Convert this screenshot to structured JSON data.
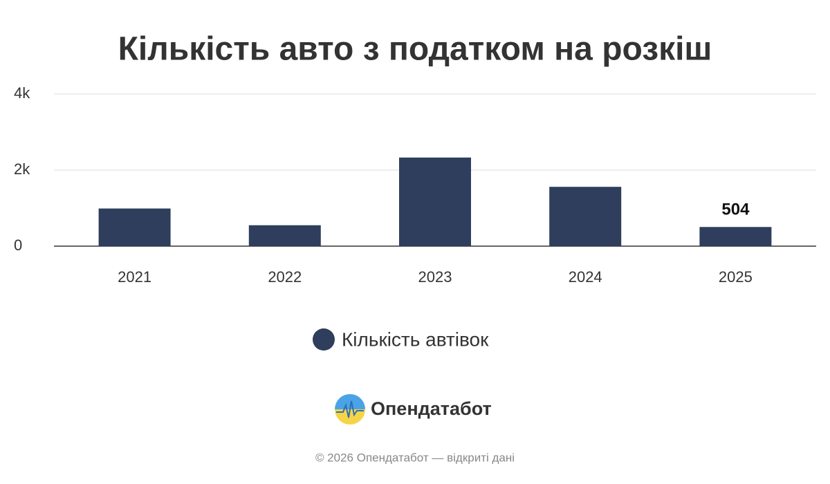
{
  "chart_data": {
    "type": "bar",
    "title": "Кількість авто з податком на розкіш",
    "categories": [
      "2021",
      "2022",
      "2023",
      "2024",
      "2025"
    ],
    "series": [
      {
        "name": "Кількість автівок",
        "color": "#2e3e5c",
        "values": [
          990,
          550,
          2330,
          1560,
          504
        ]
      }
    ],
    "ylim": [
      0,
      4000
    ],
    "yticks": [
      0,
      {
        "value": 2000,
        "label": "2k"
      },
      {
        "value": 4000,
        "label": "4k"
      }
    ],
    "grid": true,
    "data_label": "last",
    "legend": "bottom"
  },
  "brand": "Опендатабот",
  "footer": "© 2026 Опендатабот — відкриті дані"
}
